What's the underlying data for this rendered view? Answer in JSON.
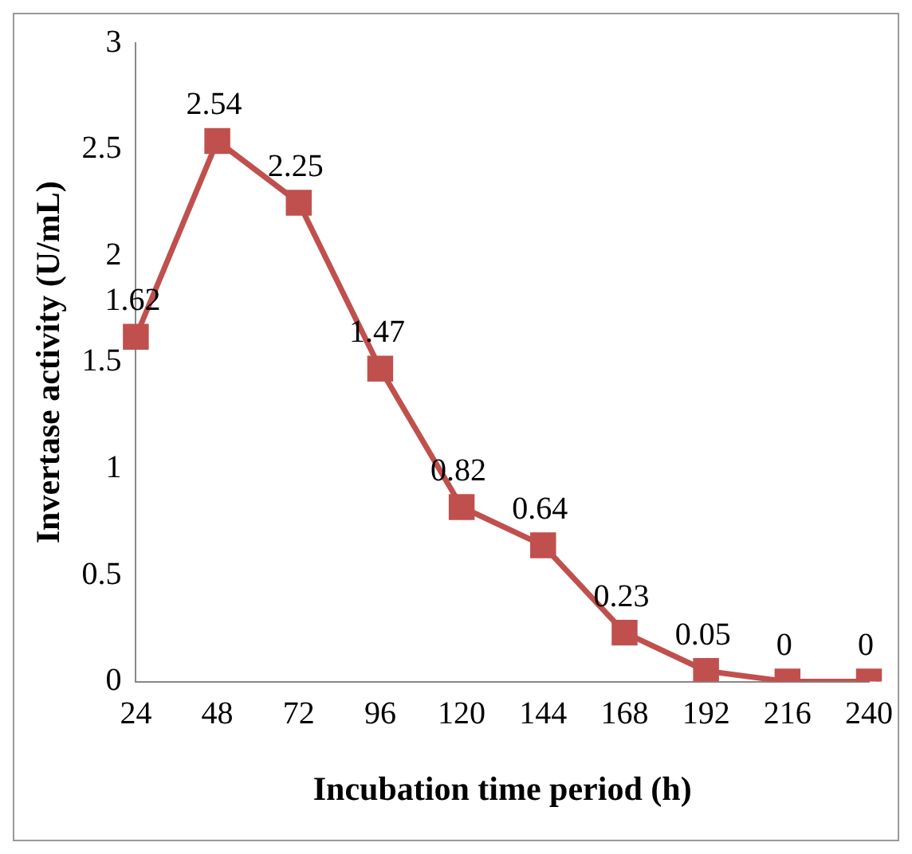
{
  "chart_data": {
    "type": "line",
    "xlabel": "Incubation time period (h)",
    "ylabel": "Invertase activity (U/mL)",
    "categories": [
      "24",
      "48",
      "72",
      "96",
      "120",
      "144",
      "168",
      "192",
      "216",
      "240"
    ],
    "series": [
      {
        "color": "#c0504d",
        "values": [
          1.62,
          2.54,
          2.25,
          1.47,
          0.82,
          0.64,
          0.23,
          0.05,
          0,
          0
        ]
      }
    ],
    "ylim": [
      0,
      3
    ],
    "yticks": [
      0,
      0.5,
      1,
      1.5,
      2,
      2.5,
      3
    ],
    "grid": false,
    "legend": false,
    "marker": "square",
    "line_style": "solid",
    "data_labels": true
  }
}
